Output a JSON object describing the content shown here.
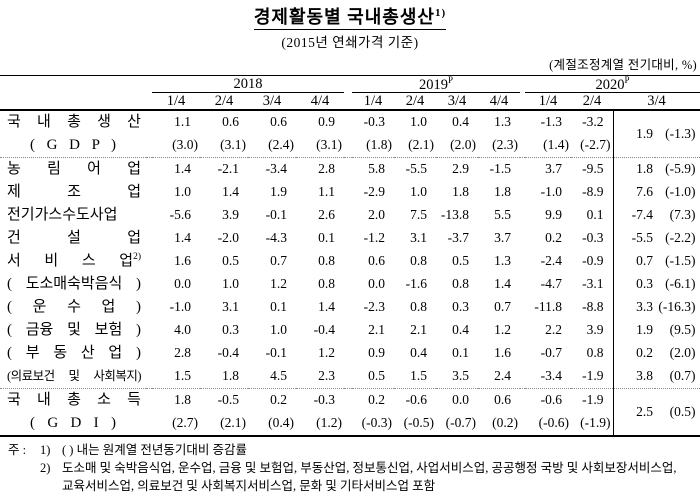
{
  "title": {
    "text": "경제활동별 국내총생산",
    "sup": "1)",
    "subtitle": "(2015년 연쇄가격 기준)",
    "unit_note": "(계절조정계열 전기대비, %)"
  },
  "table": {
    "year_groups": [
      {
        "label": "2018",
        "sup": "",
        "quarters": [
          "1/4",
          "2/4",
          "3/4",
          "4/4"
        ]
      },
      {
        "label": "2019",
        "sup": "P",
        "quarters": [
          "1/4",
          "2/4",
          "3/4",
          "4/4"
        ]
      },
      {
        "label": "2020",
        "sup": "P",
        "quarters": [
          "1/4",
          "2/4"
        ],
        "boxed_quarter": "3/4"
      }
    ],
    "rows": [
      {
        "id": "gdp",
        "label": "국 내 총 생 산",
        "label2": "( G D P )",
        "line1": [
          "1.1",
          "0.6",
          "0.6",
          "0.9",
          "-0.3",
          "1.0",
          "0.4",
          "1.3",
          "-1.3",
          "-3.2"
        ],
        "line2": [
          "(3.0)",
          "(3.1)",
          "(2.4)",
          "(3.1)",
          "(1.8)",
          "(2.1)",
          "(2.0)",
          "(2.3)",
          "(1.4)",
          "(-2.7)"
        ],
        "box": [
          "1.9",
          "(-1.3)"
        ],
        "sep_after": "dotted"
      },
      {
        "id": "agriculture-forestry-fishing",
        "label": "농 림 어 업",
        "values": [
          "1.4",
          "-2.1",
          "-3.4",
          "2.8",
          "5.8",
          "-5.5",
          "2.9",
          "-1.5",
          "3.7",
          "-9.5"
        ],
        "box": [
          "1.8",
          "(-5.9)"
        ]
      },
      {
        "id": "manufacturing",
        "label": "제 조 업",
        "values": [
          "1.0",
          "1.4",
          "1.9",
          "1.1",
          "-2.9",
          "1.0",
          "1.8",
          "1.8",
          "-1.0",
          "-8.9"
        ],
        "box": [
          "7.6",
          "(-1.0)"
        ]
      },
      {
        "id": "electricity-gas-water",
        "label": "전기가스수도사업",
        "values": [
          "-5.6",
          "3.9",
          "-0.1",
          "2.6",
          "2.0",
          "7.5",
          "-13.8",
          "5.5",
          "9.9",
          "0.1"
        ],
        "box": [
          "-7.4",
          "(7.3)"
        ]
      },
      {
        "id": "construction",
        "label": "건 설 업",
        "values": [
          "1.4",
          "-2.0",
          "-4.3",
          "0.1",
          "-1.2",
          "3.1",
          "-3.7",
          "3.7",
          "0.2",
          "-0.3"
        ],
        "box": [
          "-5.5",
          "(-2.2)"
        ]
      },
      {
        "id": "services",
        "label": "서 비 스 업",
        "label_sup": "2)",
        "values": [
          "1.6",
          "0.5",
          "0.7",
          "0.8",
          "0.6",
          "0.8",
          "0.5",
          "1.3",
          "-2.4",
          "-0.9"
        ],
        "box": [
          "0.7",
          "(-1.5)"
        ]
      },
      {
        "id": "wholesale-retail-accommodation-food",
        "label": "( 도소매숙박음식 )",
        "values": [
          "0.0",
          "1.0",
          "1.2",
          "0.8",
          "0.0",
          "-1.6",
          "0.8",
          "1.4",
          "-4.7",
          "-3.1"
        ],
        "box": [
          "0.3",
          "(-6.1)"
        ]
      },
      {
        "id": "transportation",
        "label": "( 운 수 업 )",
        "values": [
          "-1.0",
          "3.1",
          "0.1",
          "1.4",
          "-2.3",
          "0.8",
          "0.3",
          "0.7",
          "-11.8",
          "-8.8"
        ],
        "box": [
          "3.3",
          "(-16.3)"
        ]
      },
      {
        "id": "finance-insurance",
        "label": "( 금융 및 보험 )",
        "values": [
          "4.0",
          "0.3",
          "1.0",
          "-0.4",
          "2.1",
          "2.1",
          "0.4",
          "1.2",
          "2.2",
          "3.9"
        ],
        "box": [
          "1.9",
          "(9.5)"
        ]
      },
      {
        "id": "real-estate",
        "label": "( 부 동 산 업 )",
        "values": [
          "2.8",
          "-0.4",
          "-0.1",
          "1.2",
          "0.9",
          "0.4",
          "0.1",
          "1.6",
          "-0.7",
          "0.8"
        ],
        "box": [
          "0.2",
          "(2.0)"
        ]
      },
      {
        "id": "health-social-welfare",
        "label": "(의료보건 및 사회복지)",
        "values": [
          "1.5",
          "1.8",
          "4.5",
          "2.3",
          "0.5",
          "1.5",
          "3.5",
          "2.4",
          "-3.4",
          "-1.9"
        ],
        "box": [
          "3.8",
          "(0.7)"
        ],
        "sep_after": "dotted"
      },
      {
        "id": "gdi",
        "label": "국 내 총 소 득",
        "label2": "( G D I )",
        "line1": [
          "1.8",
          "-0.5",
          "0.2",
          "-0.3",
          "0.2",
          "-0.6",
          "0.0",
          "0.6",
          "-0.6",
          "-1.9"
        ],
        "line2": [
          "(2.7)",
          "(2.1)",
          "(0.4)",
          "(1.2)",
          "(-0.3)",
          "(-0.5)",
          "(-0.7)",
          "(0.2)",
          "(-0.6)",
          "(-1.9)"
        ],
        "box": [
          "2.5",
          "(0.5)"
        ]
      }
    ]
  },
  "footnotes": {
    "prefix": "주 : ",
    "items": [
      {
        "marker": "1)",
        "text": "(  ) 내는 원계열 전년동기대비 증감률"
      },
      {
        "marker": "2)",
        "text": "도소매 및 숙박음식업, 운수업, 금융 및 보험업, 부동산업, 정보통신업, 사업서비스업, 공공행정 국방 및 사회보장서비스업, 교육서비스업, 의료보건 및 사회복지서비스업, 문화 및 기타서비스업 포함"
      }
    ]
  }
}
